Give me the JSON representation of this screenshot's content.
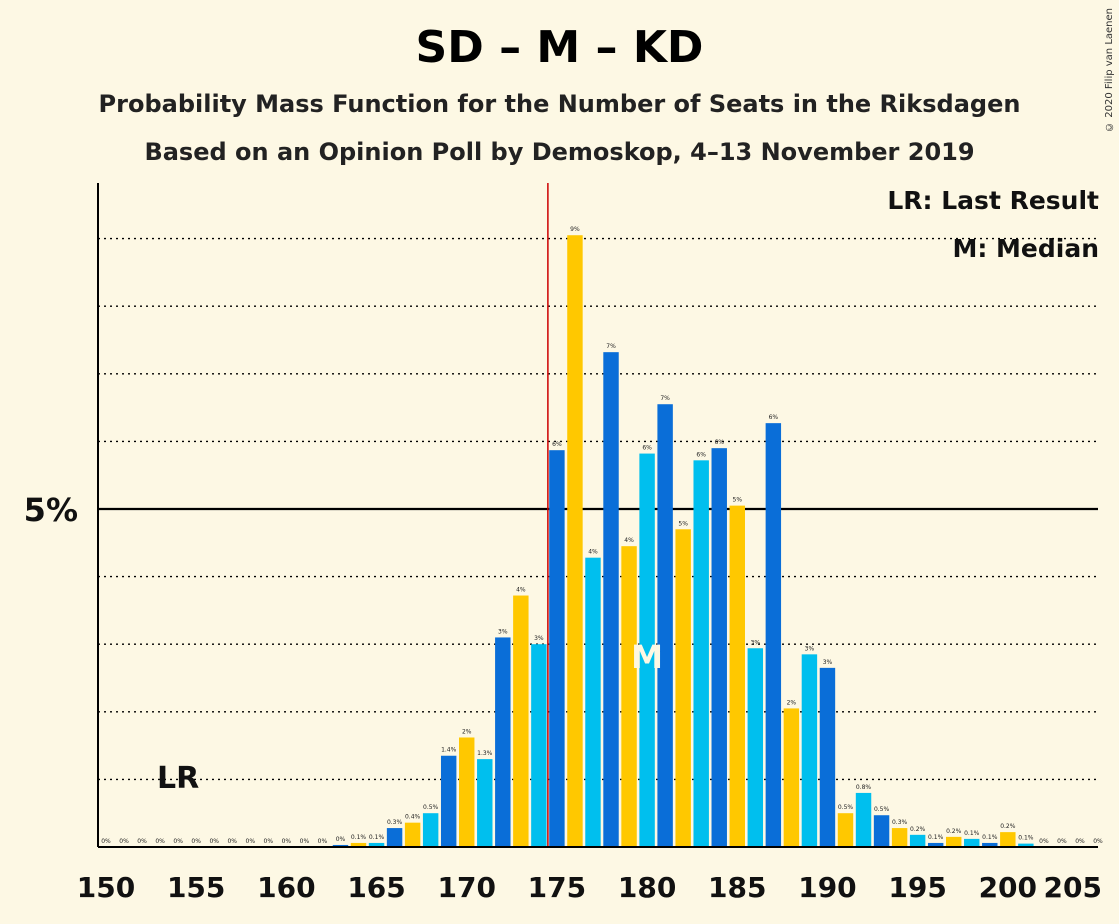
{
  "title": "SD – M – KD",
  "subtitle1": "Probability Mass Function for the Number of Seats in the Riksdagen",
  "subtitle2": "Based on an Opinion Poll by Demoskop, 4–13 November 2019",
  "copyright": "© 2020 Filip van Laenen",
  "legend": {
    "lr": "LR: Last Result",
    "m": "M: Median"
  },
  "colors": {
    "light": "#00bfee",
    "dark": "#0a6ed8",
    "yellow": "#ffc800",
    "majority": "#cc0000",
    "background": "#fdf8e4"
  },
  "chart_data": {
    "type": "bar",
    "x": [
      150,
      151,
      152,
      153,
      154,
      155,
      156,
      157,
      158,
      159,
      160,
      161,
      162,
      163,
      164,
      165,
      166,
      167,
      168,
      169,
      170,
      171,
      172,
      173,
      174,
      175,
      176,
      177,
      178,
      179,
      180,
      181,
      182,
      183,
      184,
      185,
      186,
      187,
      188,
      189,
      190,
      191,
      192,
      193,
      194,
      195,
      196,
      197,
      198,
      199,
      200,
      201,
      202,
      203,
      204,
      205
    ],
    "values": [
      0,
      0,
      0,
      0,
      0,
      0,
      0,
      0,
      0,
      0,
      0,
      0,
      0,
      0.03,
      0.06,
      0.06,
      0.28,
      0.36,
      0.5,
      1.35,
      1.62,
      1.3,
      3.1,
      3.72,
      3.0,
      5.87,
      9.05,
      4.28,
      7.32,
      4.45,
      5.82,
      6.55,
      4.7,
      5.72,
      5.9,
      5.05,
      2.94,
      6.27,
      2.05,
      2.85,
      2.65,
      0.5,
      0.8,
      0.47,
      0.28,
      0.18,
      0.06,
      0.15,
      0.12,
      0.06,
      0.22,
      0.05,
      0,
      0,
      0,
      0
    ],
    "labels": [
      "0%",
      "0%",
      "0%",
      "0%",
      "0%",
      "0%",
      "0%",
      "0%",
      "0%",
      "0%",
      "0%",
      "0%",
      "0%",
      "0%",
      "0.1%",
      "0.1%",
      "0.3%",
      "0.4%",
      "0.5%",
      "1.4%",
      "2%",
      "1.3%",
      "3%",
      "4%",
      "3%",
      "6%",
      "9%",
      "4%",
      "7%",
      "4%",
      "6%",
      "7%",
      "5%",
      "6%",
      "6%",
      "5%",
      "3%",
      "6%",
      "2%",
      "3%",
      "3%",
      "0.5%",
      "0.8%",
      "0.5%",
      "0.3%",
      "0.2%",
      "0.1%",
      "0.2%",
      "0.1%",
      "0.1%",
      "0.2%",
      "0.1%",
      "0%",
      "0%",
      "0%",
      "0%"
    ],
    "xticks": [
      "150",
      "155",
      "160",
      "165",
      "170",
      "175",
      "180",
      "185",
      "190",
      "195",
      "200",
      "205"
    ],
    "ytick_label": "5%",
    "ylim": [
      0,
      9.8
    ],
    "grid_values": [
      1,
      2,
      3,
      4,
      5,
      6,
      7,
      8,
      9
    ],
    "majority_line": 175,
    "last_result": {
      "seat": 154,
      "label": "LR"
    },
    "median": {
      "seat": 180,
      "label": "M"
    }
  }
}
